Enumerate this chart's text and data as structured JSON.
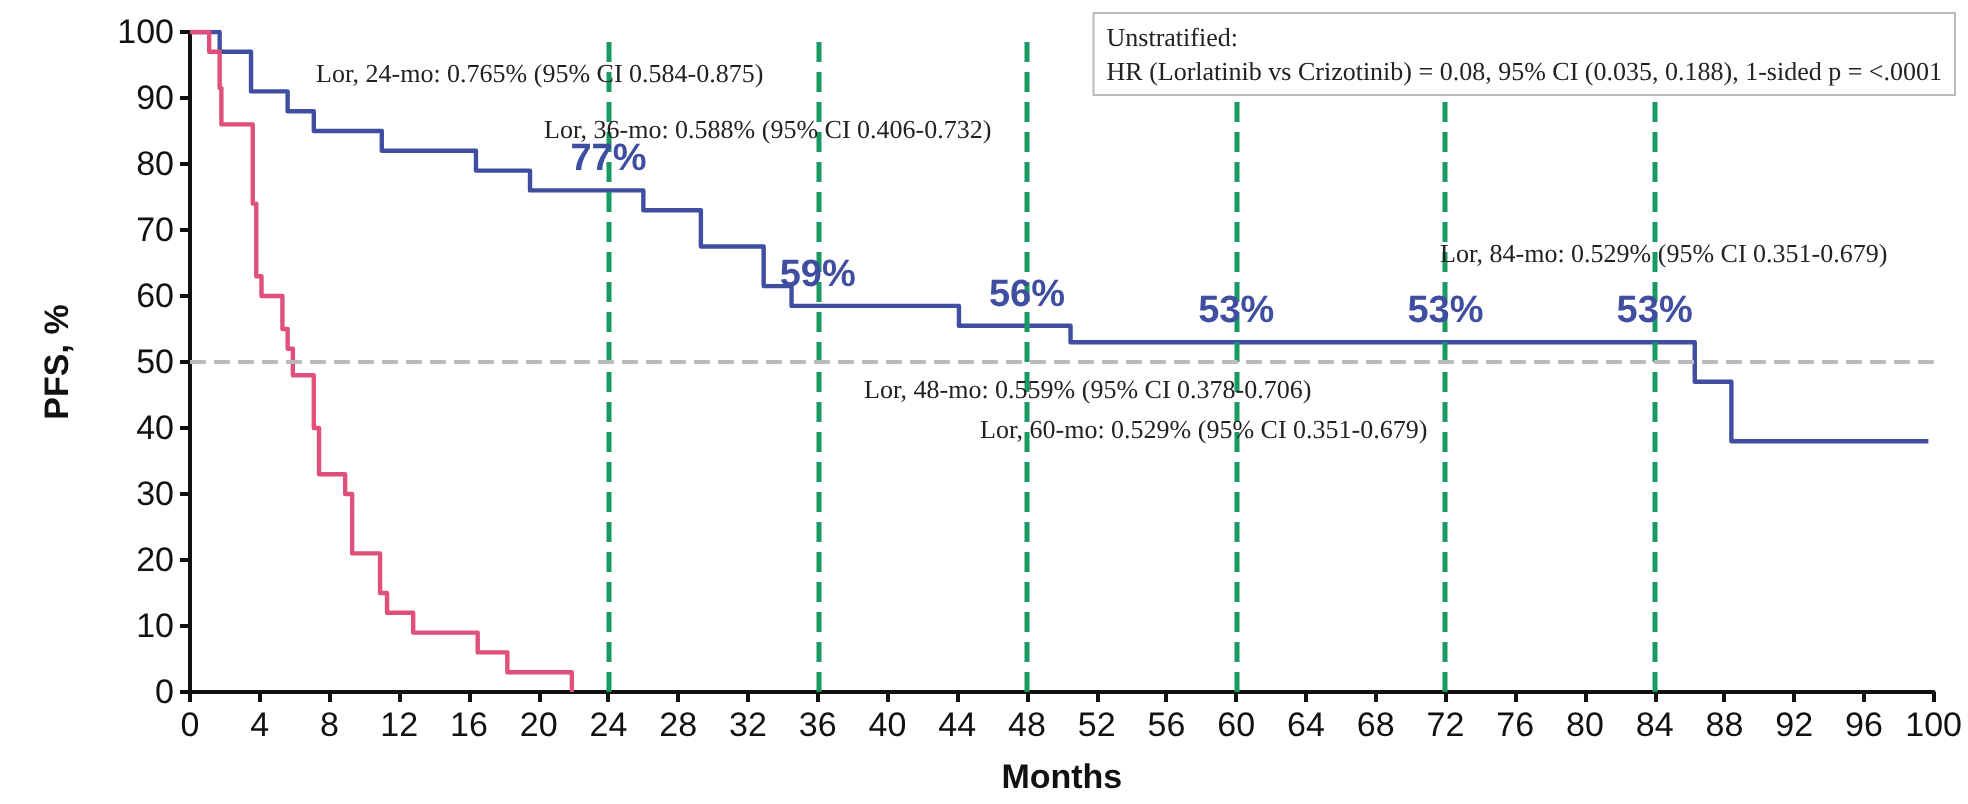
{
  "chart_data": {
    "type": "step",
    "xlabel": "Months",
    "ylabel": "PFS, %",
    "xlim": [
      0,
      100
    ],
    "xticks": [
      0,
      4,
      8,
      12,
      16,
      20,
      24,
      28,
      32,
      36,
      40,
      44,
      48,
      52,
      56,
      60,
      64,
      68,
      72,
      76,
      80,
      84,
      88,
      92,
      96,
      100
    ],
    "ylim": [
      0,
      100
    ],
    "yticks": [
      0,
      10,
      20,
      30,
      40,
      50,
      60,
      70,
      80,
      90,
      100
    ],
    "series": [
      {
        "color": "#3f4ea0",
        "x": [
          0,
          1.7,
          3.5,
          5.6,
          7.1,
          11,
          16.4,
          19.5,
          26,
          29.3,
          32.9,
          34.5,
          44.1,
          50.5,
          86.3,
          88.4,
          99.7
        ],
        "values": [
          100,
          97,
          91,
          88,
          85,
          82,
          79,
          76,
          73,
          67.5,
          61.5,
          58.5,
          55.5,
          53,
          47,
          38,
          38
        ]
      },
      {
        "color": "#e0507a",
        "x": [
          0,
          1.1,
          1.7,
          1.8,
          3.5,
          3.6,
          3.8,
          4.1,
          5.3,
          5.6,
          5.9,
          7.1,
          7.4,
          8.9,
          9.3,
          10.9,
          11.3,
          12.8,
          16.5,
          18.2,
          21.9
        ],
        "values": [
          100,
          97,
          91.5,
          86,
          86,
          74,
          63,
          60,
          55,
          52,
          48,
          40,
          33,
          30,
          21,
          15,
          12,
          9,
          6,
          3,
          0
        ]
      }
    ],
    "ref_lines": [
      {
        "axis": "x",
        "value": 24,
        "color": "#1a9a63",
        "line_style": "dashed"
      },
      {
        "axis": "x",
        "value": 36,
        "color": "#1a9a63",
        "line_style": "dashed"
      },
      {
        "axis": "x",
        "value": 48,
        "color": "#1a9a63",
        "line_style": "dashed"
      },
      {
        "axis": "x",
        "value": 60,
        "color": "#1a9a63",
        "line_style": "dashed"
      },
      {
        "axis": "x",
        "value": 72,
        "color": "#1a9a63",
        "line_style": "dashed"
      },
      {
        "axis": "x",
        "value": 84,
        "color": "#1a9a63",
        "line_style": "dashed"
      },
      {
        "axis": "y",
        "value": 50,
        "color": "#bbbbbb",
        "line_style": "dashed"
      }
    ],
    "annotations": [
      {
        "text": "77%",
        "x": 24,
        "y": 76
      },
      {
        "text": "59%",
        "x": 36,
        "y": 58.5
      },
      {
        "text": "56%",
        "x": 48,
        "y": 55.5
      },
      {
        "text": "53%",
        "x": 60,
        "y": 53
      },
      {
        "text": "53%",
        "x": 72,
        "y": 53
      },
      {
        "text": "53%",
        "x": 84,
        "y": 53
      },
      "Lor, 24-mo: 0.765% (95% CI 0.584-0.875)",
      "Lor, 36-mo: 0.588% (95% CI 0.406-0.732)",
      "Lor, 48-mo: 0.559% (95% CI 0.378-0.706)",
      "Lor, 60-mo: 0.529% (95% CI 0.351-0.679)",
      "Lor, 84-mo: 0.529% (95% CI 0.351-0.679)",
      "Unstratified:\nHR (Lorlatinib vs Crizotinib) = 0.08, 95% CI (0.035, 0.188), 1-sided p = <.0001"
    ],
    "grid": false,
    "marker": "none",
    "line_style": "solid"
  }
}
